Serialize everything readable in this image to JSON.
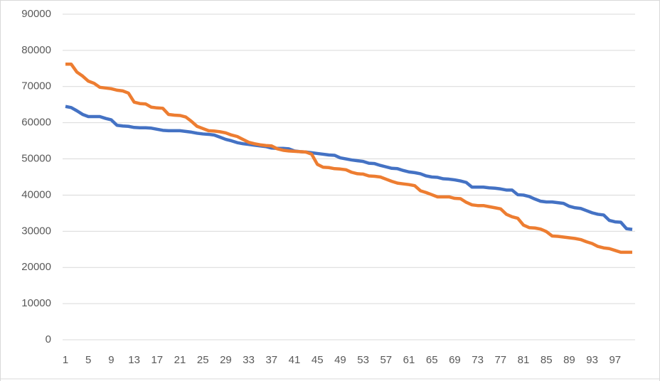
{
  "chart_data": {
    "type": "line",
    "categories": [
      1,
      null,
      null,
      null,
      5,
      null,
      null,
      null,
      9,
      null,
      null,
      null,
      13,
      null,
      null,
      null,
      17,
      null,
      null,
      null,
      21,
      null,
      null,
      null,
      25,
      null,
      null,
      null,
      29,
      null,
      null,
      null,
      33,
      null,
      null,
      null,
      37,
      null,
      null,
      null,
      41,
      null,
      null,
      null,
      45,
      null,
      null,
      null,
      49,
      null,
      null,
      null,
      53,
      null,
      null,
      null,
      57,
      null,
      null,
      null,
      61,
      null,
      null,
      null,
      65,
      null,
      null,
      null,
      69,
      null,
      null,
      null,
      73,
      null,
      null,
      null,
      77,
      null,
      null,
      null,
      81,
      null,
      null,
      null,
      85,
      null,
      null,
      null,
      89,
      null,
      null,
      null,
      93,
      null,
      null,
      null,
      97,
      null,
      null,
      null
    ],
    "series": [
      {
        "color": "#4472c4",
        "values": [
          64500,
          64200,
          63300,
          62300,
          61700,
          61700,
          61700,
          61200,
          60800,
          59300,
          59100,
          59000,
          58700,
          58600,
          58600,
          58500,
          58200,
          57900,
          57800,
          57800,
          57800,
          57600,
          57400,
          57100,
          56900,
          56800,
          56600,
          56000,
          55400,
          55000,
          54500,
          54200,
          54000,
          53800,
          53600,
          53400,
          53000,
          52900,
          52900,
          52800,
          52200,
          52000,
          51900,
          51700,
          51500,
          51300,
          51100,
          51000,
          50300,
          50000,
          49700,
          49500,
          49300,
          48800,
          48700,
          48200,
          47800,
          47400,
          47300,
          46800,
          46400,
          46200,
          45900,
          45300,
          45000,
          44900,
          44500,
          44400,
          44200,
          43900,
          43500,
          42200,
          42200,
          42200,
          42000,
          41900,
          41700,
          41400,
          41400,
          40100,
          40000,
          39600,
          38900,
          38300,
          38100,
          38100,
          37900,
          37700,
          36900,
          36500,
          36300,
          35700,
          35100,
          34700,
          34500,
          33000,
          32600,
          32500,
          30700,
          30500
        ]
      },
      {
        "color": "#ed7d31",
        "values": [
          76200,
          76200,
          74000,
          72900,
          71500,
          70900,
          69800,
          69600,
          69400,
          69000,
          68800,
          68200,
          65700,
          65300,
          65200,
          64300,
          64100,
          64000,
          62300,
          62100,
          62000,
          61600,
          60400,
          59000,
          58400,
          57800,
          57700,
          57500,
          57200,
          56600,
          56200,
          55400,
          54600,
          54200,
          53900,
          53700,
          53600,
          52800,
          52400,
          52200,
          52100,
          52000,
          51900,
          51300,
          48500,
          47700,
          47600,
          47300,
          47200,
          47000,
          46300,
          45900,
          45800,
          45300,
          45200,
          45000,
          44400,
          43800,
          43300,
          43100,
          42900,
          42600,
          41200,
          40700,
          40100,
          39500,
          39500,
          39500,
          39100,
          39000,
          38000,
          37300,
          37100,
          37100,
          36800,
          36500,
          36200,
          34700,
          34000,
          33600,
          31700,
          31000,
          30900,
          30600,
          29900,
          28700,
          28600,
          28400,
          28200,
          28000,
          27700,
          27100,
          26600,
          25800,
          25400,
          25200,
          24700,
          24200,
          24200,
          24200
        ]
      }
    ],
    "ylim": [
      0,
      90000
    ],
    "yticks": [
      0,
      10000,
      20000,
      30000,
      40000,
      50000,
      60000,
      70000,
      80000,
      90000
    ],
    "grid": true
  }
}
